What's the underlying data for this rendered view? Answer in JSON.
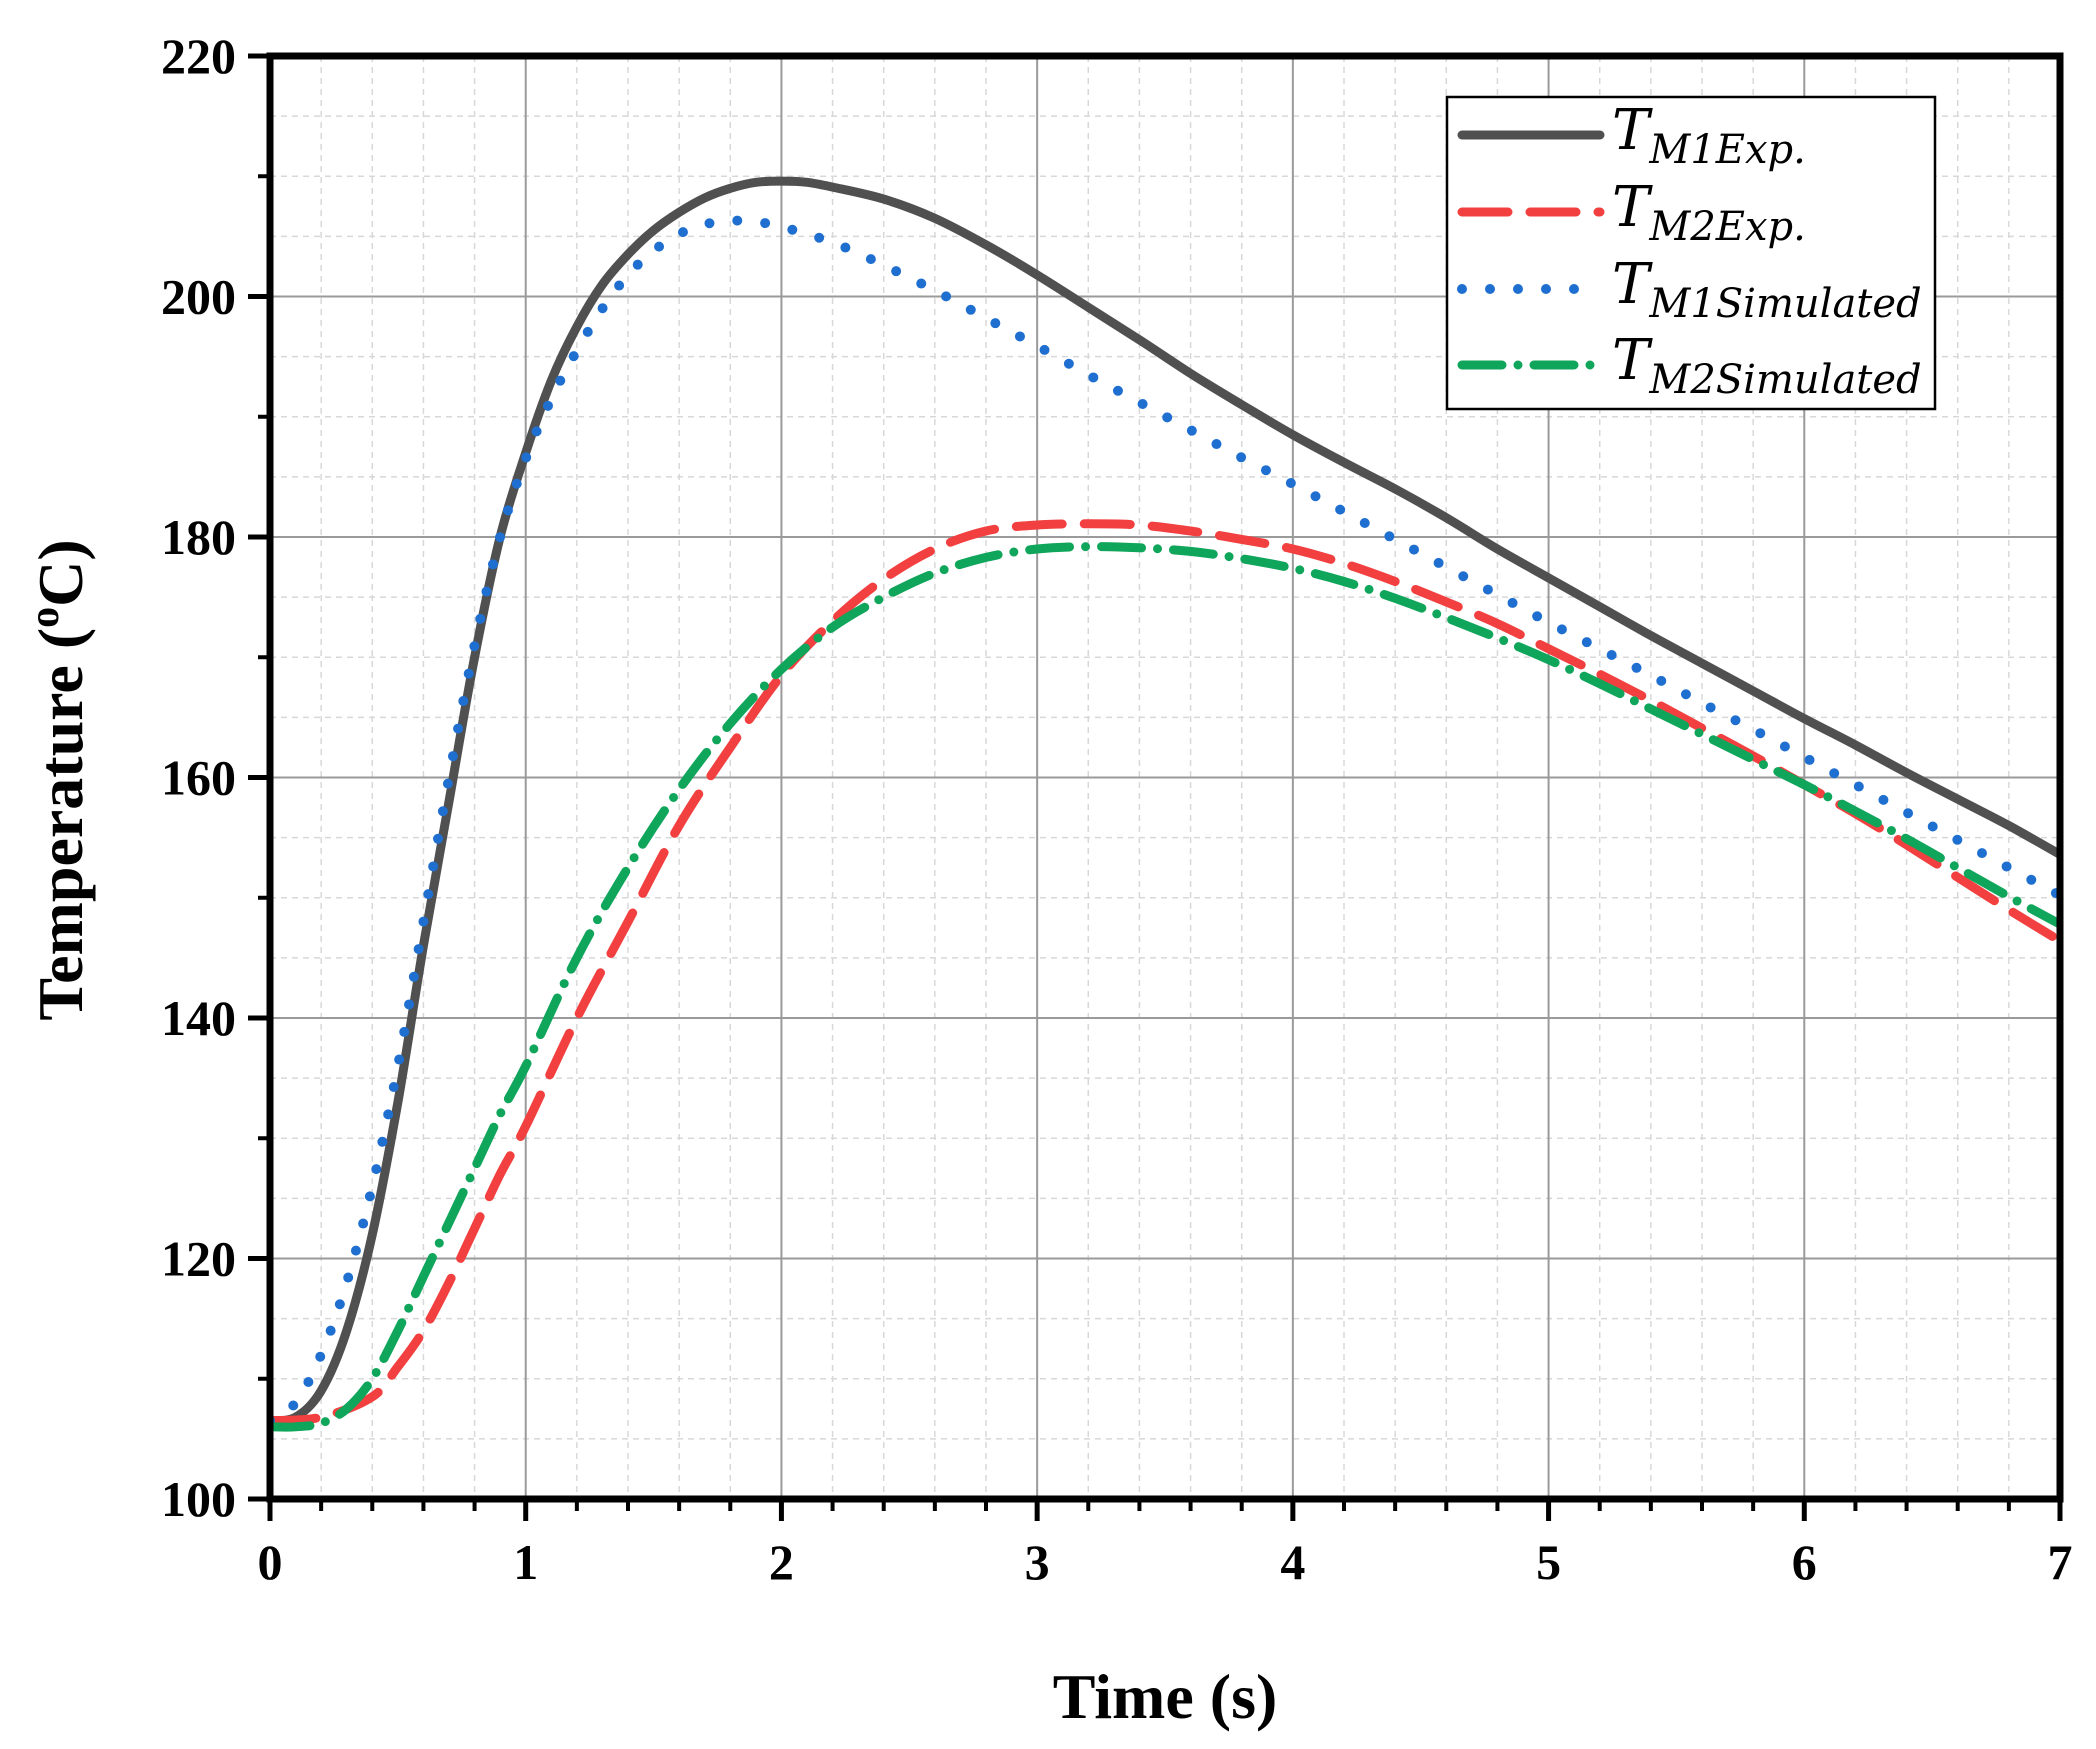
{
  "chart_data": {
    "type": "line",
    "title": "",
    "xlabel": "Time (s)",
    "ylabel_main": "Temperature (",
    "ylabel_sup": "o",
    "ylabel_end": "C)",
    "xlim": [
      0,
      7
    ],
    "ylim": [
      100,
      220
    ],
    "xticks": [
      0,
      1,
      2,
      3,
      4,
      5,
      6,
      7
    ],
    "yticks": [
      100,
      120,
      140,
      160,
      180,
      200,
      220
    ],
    "grid": true,
    "legend_position": "top-right",
    "series": [
      {
        "name": "T_M1Exp.",
        "label_main": "T",
        "label_sub": "M1Exp.",
        "color": "#505050",
        "style": "solid",
        "x": [
          0,
          0.1,
          0.2,
          0.3,
          0.4,
          0.5,
          0.6,
          0.7,
          0.8,
          0.9,
          1.0,
          1.1,
          1.2,
          1.3,
          1.4,
          1.5,
          1.6,
          1.7,
          1.8,
          1.9,
          2.0,
          2.1,
          2.2,
          2.4,
          2.6,
          2.8,
          3.0,
          3.2,
          3.4,
          3.6,
          3.8,
          4.0,
          4.2,
          4.4,
          4.6,
          4.8,
          5.0,
          5.2,
          5.4,
          5.6,
          5.8,
          6.0,
          6.2,
          6.4,
          6.6,
          6.8,
          7.0
        ],
        "y": [
          106.5,
          106.8,
          109,
          114,
          122,
          133,
          146,
          158,
          170,
          180,
          187,
          193,
          197.5,
          201,
          203.5,
          205.5,
          207,
          208.2,
          209,
          209.5,
          209.6,
          209.5,
          209.1,
          208.1,
          206.5,
          204.3,
          201.8,
          199.1,
          196.4,
          193.6,
          191.0,
          188.5,
          186.2,
          184.0,
          181.6,
          179.0,
          176.6,
          174.2,
          171.8,
          169.5,
          167.2,
          164.9,
          162.7,
          160.4,
          158.2,
          156.0,
          153.6
        ]
      },
      {
        "name": "T_M2Exp.",
        "label_main": "T",
        "label_sub": "M2Exp.",
        "color": "#F24040",
        "style": "dash",
        "x": [
          0,
          0.2,
          0.4,
          0.5,
          0.6,
          0.7,
          0.8,
          0.9,
          1.0,
          1.2,
          1.4,
          1.6,
          1.8,
          2.0,
          2.2,
          2.4,
          2.6,
          2.8,
          3.0,
          3.2,
          3.4,
          3.6,
          3.8,
          4.0,
          4.2,
          4.4,
          4.6,
          4.8,
          5.0,
          5.2,
          5.4,
          5.6,
          5.8,
          6.0,
          6.2,
          6.4,
          6.6,
          6.8,
          7.0
        ],
        "y": [
          106.5,
          106.8,
          108.5,
          111,
          114,
          118,
          122.5,
          127,
          131,
          140,
          148,
          156,
          162.5,
          168.5,
          173,
          176.5,
          179,
          180.5,
          181.0,
          181.1,
          181.0,
          180.5,
          179.8,
          179.0,
          177.8,
          176.3,
          174.6,
          172.8,
          170.7,
          168.6,
          166.4,
          164.1,
          161.8,
          159.4,
          157.0,
          154.4,
          151.7,
          149.0,
          146.4
        ]
      },
      {
        "name": "T_M1Simulated",
        "label_main": "T",
        "label_sub": "M1Simulated",
        "color": "#1F6FD1",
        "style": "dot",
        "x": [
          0,
          0.1,
          0.2,
          0.3,
          0.4,
          0.5,
          0.6,
          0.7,
          0.8,
          0.9,
          1.0,
          1.1,
          1.2,
          1.3,
          1.4,
          1.5,
          1.6,
          1.7,
          1.8,
          1.9,
          2.0,
          2.2,
          2.4,
          2.6,
          2.8,
          3.0,
          3.2,
          3.4,
          3.6,
          3.8,
          4.0,
          4.2,
          4.4,
          4.6,
          4.8,
          5.0,
          5.2,
          5.4,
          5.6,
          5.8,
          6.0,
          6.2,
          6.4,
          6.6,
          6.8,
          7.0
        ],
        "y": [
          106.5,
          108,
          112,
          118,
          126,
          136,
          148,
          160,
          171,
          180,
          186.5,
          191.5,
          195.5,
          199,
          201.8,
          203.8,
          205.2,
          206.0,
          206.3,
          206.2,
          205.8,
          204.5,
          202.6,
          200.5,
          198.2,
          195.9,
          193.5,
          191.2,
          188.9,
          186.6,
          184.4,
          182.1,
          179.8,
          177.5,
          175.2,
          172.9,
          170.7,
          168.5,
          166.2,
          164.0,
          161.7,
          159.4,
          157.1,
          154.8,
          152.5,
          150.2
        ]
      },
      {
        "name": "T_M2Simulated",
        "label_main": "T",
        "label_sub": "M2Simulated",
        "color": "#0FA55B",
        "style": "dashdot",
        "x": [
          0,
          0.1,
          0.2,
          0.3,
          0.4,
          0.5,
          0.6,
          0.7,
          0.8,
          0.9,
          1.0,
          1.2,
          1.4,
          1.6,
          1.8,
          2.0,
          2.2,
          2.4,
          2.6,
          2.8,
          3.0,
          3.2,
          3.4,
          3.6,
          3.8,
          4.0,
          4.2,
          4.4,
          4.6,
          4.8,
          5.0,
          5.2,
          5.4,
          5.6,
          5.8,
          6.0,
          6.2,
          6.4,
          6.6,
          6.8,
          7.0
        ],
        "y": [
          106.0,
          106.0,
          106.3,
          107.5,
          110,
          114,
          118.5,
          123,
          127.5,
          132,
          136,
          145,
          152.5,
          159,
          164.5,
          169,
          172.5,
          175,
          177,
          178.3,
          179.0,
          179.2,
          179.1,
          178.8,
          178.2,
          177.4,
          176.3,
          174.9,
          173.3,
          171.6,
          169.8,
          167.8,
          165.7,
          163.6,
          161.5,
          159.4,
          157.2,
          154.9,
          152.5,
          150.1,
          147.8
        ]
      }
    ]
  }
}
